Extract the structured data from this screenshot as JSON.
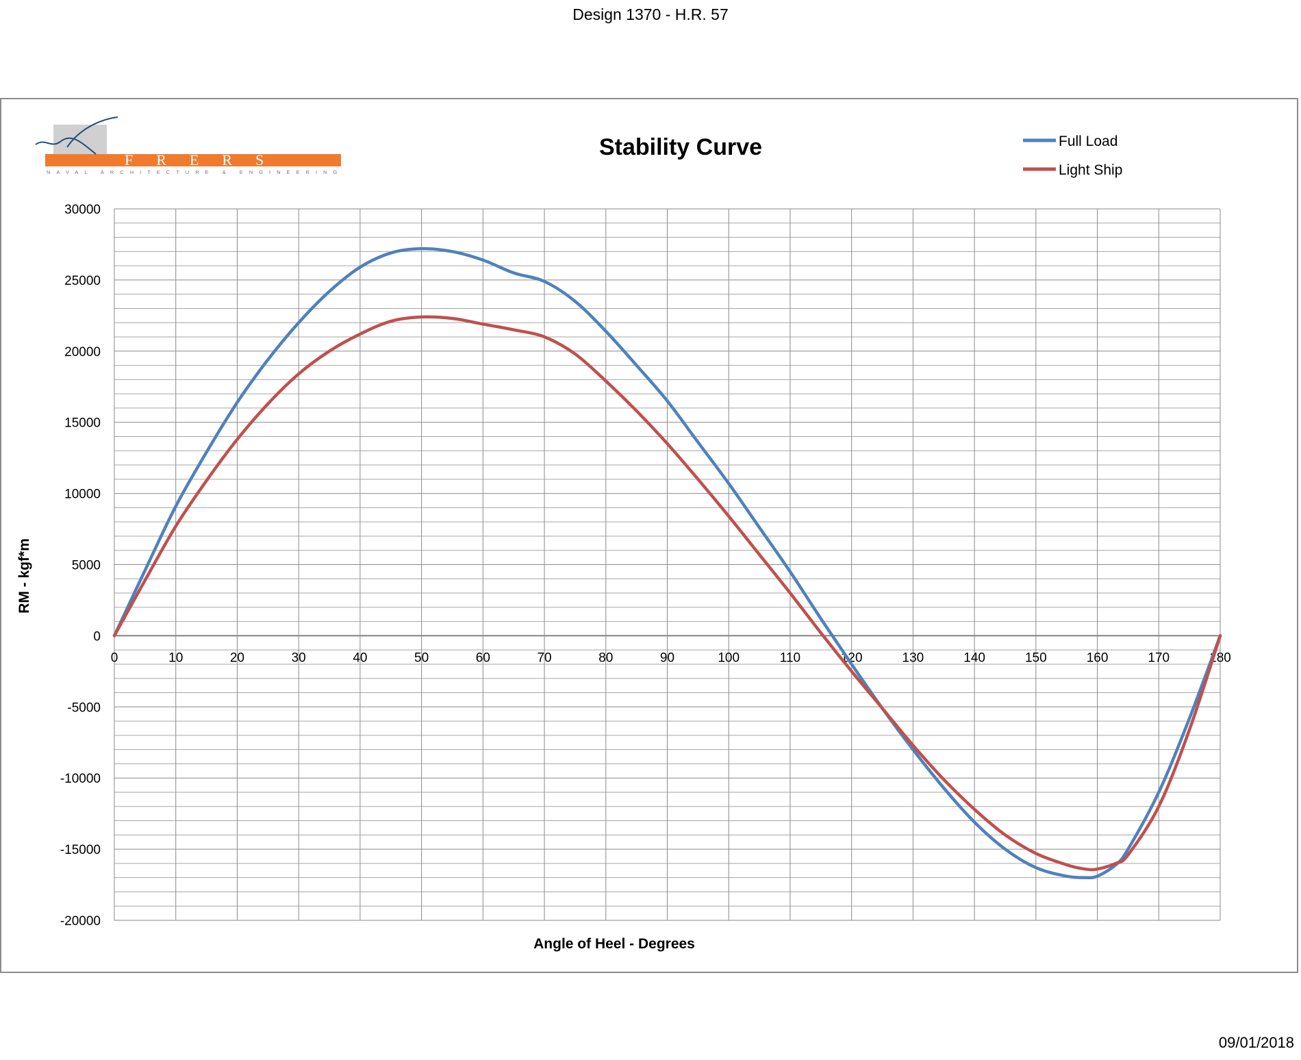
{
  "page": {
    "title": "Design 1370 - H.R. 57",
    "date": "09/01/2018"
  },
  "logo": {
    "name": "FRERS",
    "tagline": "NAVAL ARCHITECTURE & ENGINEERING",
    "colors": {
      "bar": "#F07B2E",
      "mark": "#1F4E79",
      "box": "#D0D0D0"
    }
  },
  "chart_data": {
    "type": "line",
    "title": "Stability Curve",
    "xlabel": "Angle of Heel - Degrees",
    "ylabel": "RM  - kgf*m",
    "xlim": [
      0,
      180
    ],
    "ylim": [
      -20000,
      30000
    ],
    "x_ticks": [
      "0",
      "10",
      "20",
      "30",
      "40",
      "50",
      "60",
      "70",
      "80",
      "90",
      "100",
      "110",
      "120",
      "130",
      "140",
      "150",
      "160",
      "170",
      "180"
    ],
    "y_ticks": [
      "30000",
      "25000",
      "20000",
      "15000",
      "10000",
      "5000",
      "0",
      "-5000",
      "-10000",
      "-15000",
      "-20000"
    ],
    "grid": true,
    "legend_position": "top-right",
    "x": [
      0,
      5,
      10,
      15,
      20,
      25,
      30,
      35,
      40,
      45,
      50,
      55,
      60,
      65,
      70,
      75,
      80,
      85,
      90,
      95,
      100,
      105,
      110,
      115,
      120,
      125,
      130,
      135,
      140,
      145,
      150,
      155,
      158,
      160,
      163,
      165,
      170,
      175,
      180
    ],
    "series": [
      {
        "name": "Full Load",
        "color": "#4F81BD",
        "values": [
          0,
          4600,
          9100,
          12900,
          16400,
          19400,
          22000,
          24200,
          25900,
          26900,
          27200,
          27000,
          26400,
          25500,
          24900,
          23500,
          21400,
          19000,
          16500,
          13600,
          10700,
          7600,
          4500,
          1200,
          -2000,
          -5100,
          -8000,
          -10700,
          -13100,
          -15000,
          -16300,
          -16900,
          -17000,
          -16900,
          -16100,
          -15000,
          -11000,
          -5800,
          0
        ]
      },
      {
        "name": "Light Ship",
        "color": "#C0504D",
        "values": [
          0,
          3900,
          7700,
          10900,
          13800,
          16300,
          18400,
          20000,
          21200,
          22100,
          22400,
          22300,
          21900,
          21500,
          21000,
          19800,
          17900,
          15800,
          13500,
          11000,
          8400,
          5700,
          3000,
          200,
          -2500,
          -5100,
          -7700,
          -10100,
          -12200,
          -14000,
          -15300,
          -16100,
          -16400,
          -16400,
          -16000,
          -15400,
          -12000,
          -6600,
          0
        ]
      }
    ]
  }
}
